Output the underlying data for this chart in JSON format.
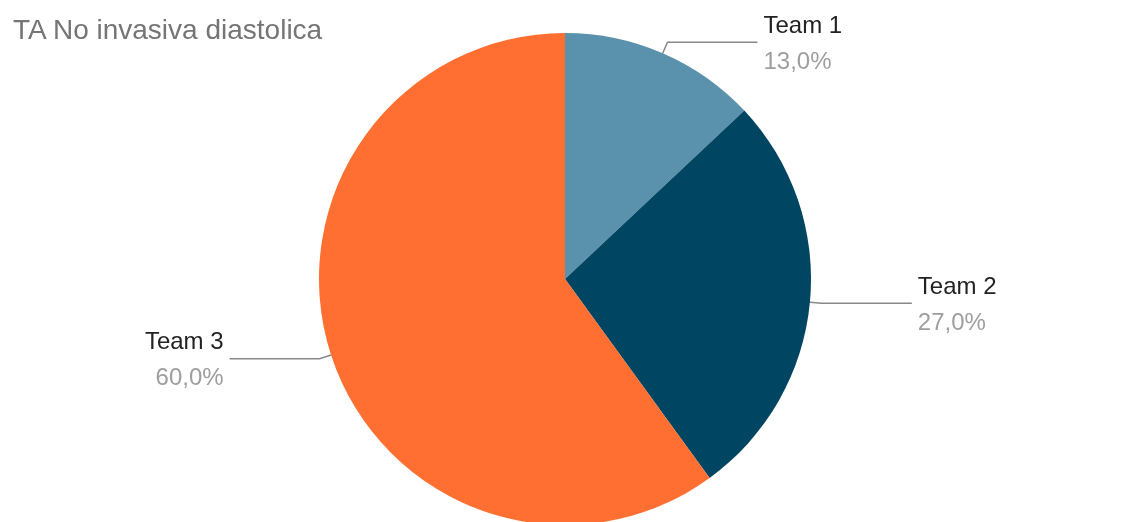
{
  "chart_data": {
    "type": "pie",
    "title": "TA No invasiva diastolica",
    "categories": [
      "Team 1",
      "Team 2",
      "Team 3"
    ],
    "values": [
      13,
      27,
      60
    ],
    "value_labels": [
      "13,0%",
      "27,0%",
      "60,0%"
    ],
    "colors": [
      "#5a91ad",
      "#004561",
      "#ff6f31"
    ],
    "legend": false
  }
}
